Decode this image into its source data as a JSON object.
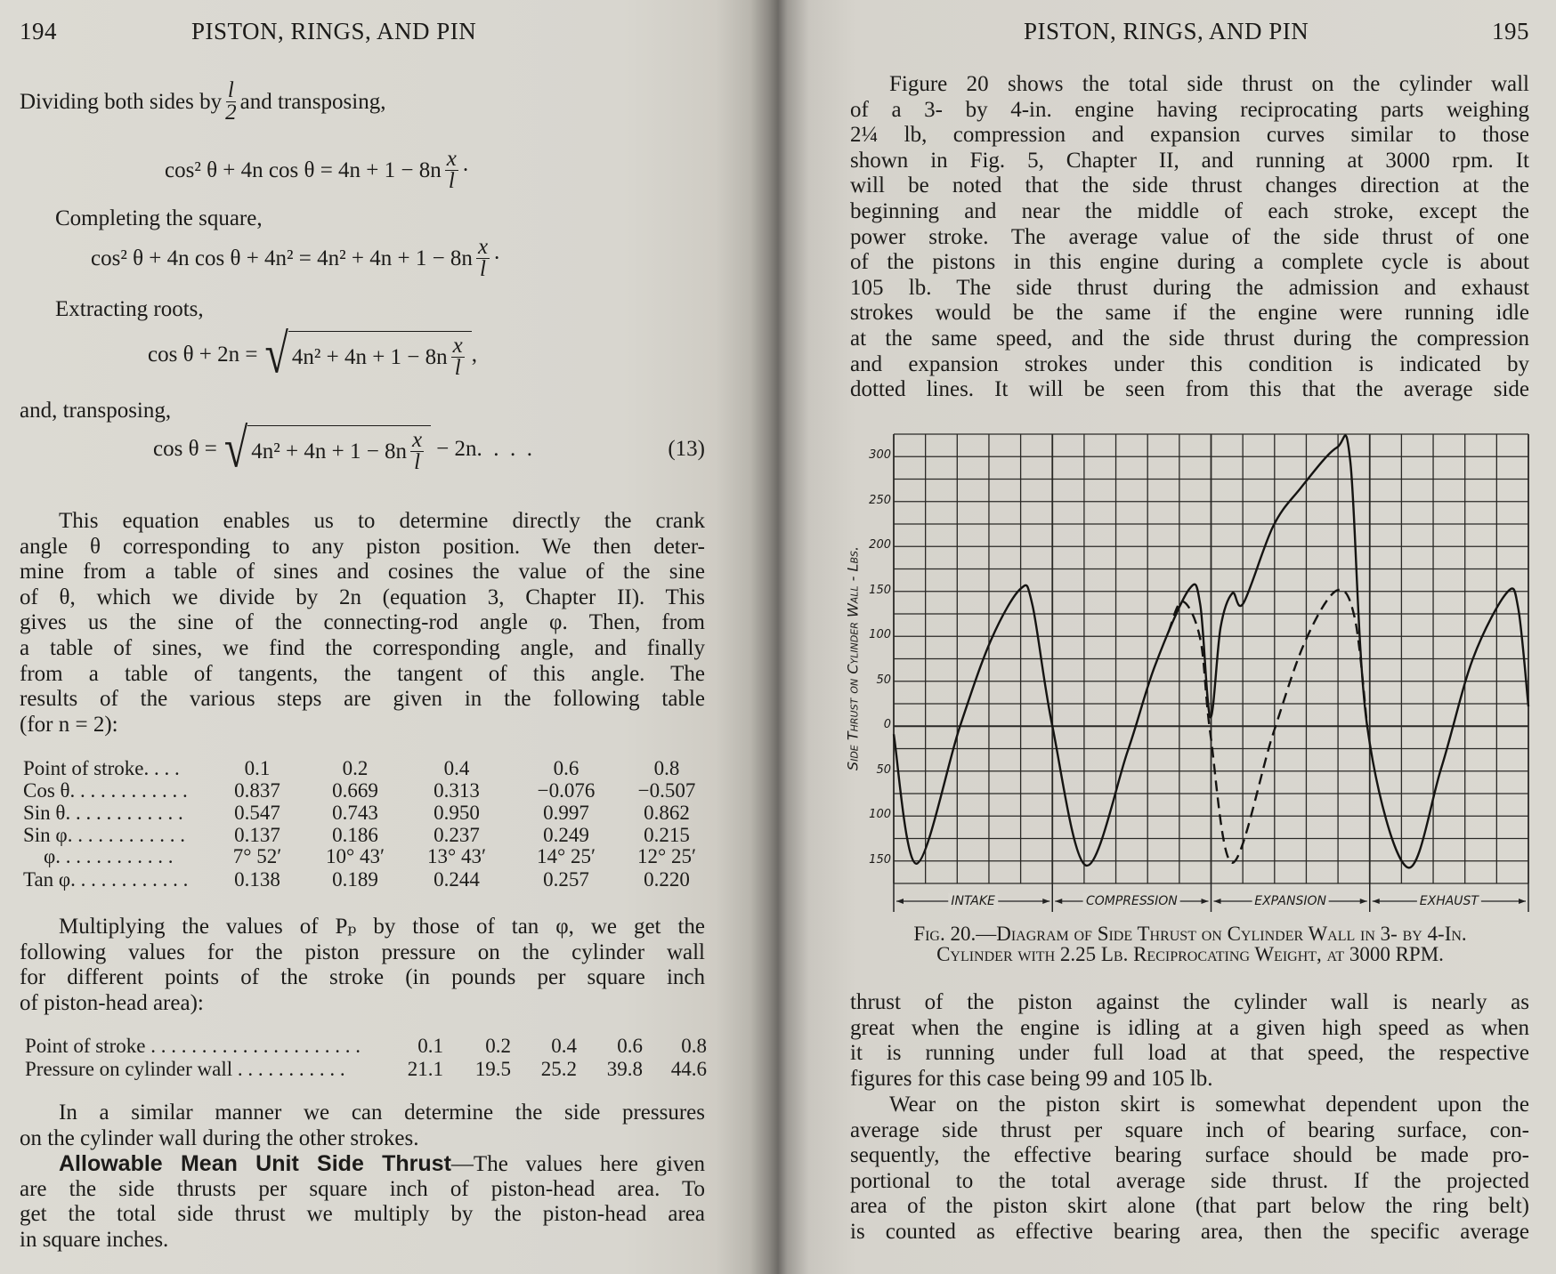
{
  "left_page": {
    "page_number": "194",
    "running_head": "PISTON, RINGS, AND PIN",
    "dividing": {
      "before": "Dividing both sides by",
      "num": "l",
      "den": "2",
      "after": "and transposing,"
    },
    "eq1": {
      "lhs": "cos² θ + 4n cos θ = 4n + 1 − 8n",
      "num": "x",
      "den": "l",
      "tail": "·"
    },
    "completing": "Completing the square,",
    "eq2": {
      "lhs": "cos² θ + 4n cos θ + 4n² = 4n² + 4n + 1 − 8n",
      "num": "x",
      "den": "l",
      "tail": "·"
    },
    "extracting": "Extracting roots,",
    "eq3": {
      "lhs": "cos θ + 2n =",
      "rad": "4n² + 4n + 1 − 8n",
      "num": "x",
      "den": "l",
      "tail": ","
    },
    "transposing": "and, transposing,",
    "eq4": {
      "lhs": "cos θ =",
      "rad": "4n² + 4n + 1 − 8n",
      "num": "x",
      "den": "l",
      "tail": "− 2n.  .  .  .",
      "number": "(13)"
    },
    "para1": {
      "lines": [
        "This equation enables us to determine directly the crank",
        "angle θ corresponding to any piston position.  We then deter-",
        "mine from a table of sines and cosines the value of the sine",
        "of θ, which we divide by 2n (equation 3, Chapter II).  This",
        "gives us the sine of the connecting-rod angle φ.  Then, from",
        "a table of sines, we find the corresponding angle, and finally",
        "from a table of tangents, the tangent of this angle.  The",
        "results of the various steps are given in the following table",
        "(for n = 2):"
      ]
    },
    "table1": {
      "rows": [
        {
          "label": "Point of stroke. . . .",
          "values": [
            "0.1",
            "0.2",
            "0.4",
            "0.6",
            "0.8"
          ]
        },
        {
          "label": "Cos θ. . . . . . . . . . . .",
          "values": [
            "0.837",
            "0.669",
            "0.313",
            "−0.076",
            "−0.507"
          ]
        },
        {
          "label": "Sin θ. . . . . . . . . . . .",
          "values": [
            "0.547",
            "0.743",
            "0.950",
            "0.997",
            "0.862"
          ]
        },
        {
          "label": "Sin φ. . . . . . . . . . . .",
          "values": [
            "0.137",
            "0.186",
            "0.237",
            "0.249",
            "0.215"
          ]
        },
        {
          "label": "    φ. . . . . . . . . . . .",
          "values": [
            "7° 52′",
            "10° 43′",
            "13° 43′",
            "14° 25′",
            "12° 25′"
          ]
        },
        {
          "label": "Tan φ. . . . . . . . . . . .",
          "values": [
            "0.138",
            "0.189",
            "0.244",
            "0.257",
            "0.220"
          ]
        }
      ]
    },
    "para2": {
      "lines": [
        "Multiplying the values of Pₚ by those of tan φ, we get the",
        "following values for the piston pressure on the cylinder wall",
        "for different points of the stroke (in pounds per square inch",
        "of piston-head area):"
      ]
    },
    "table2": {
      "rows": [
        {
          "label": "Point of stroke . . . . . . . . . . . . . . . . . . . . .",
          "values": [
            "0.1",
            "0.2",
            "0.4",
            "0.6",
            "0.8"
          ]
        },
        {
          "label": "Pressure on cylinder wall . . . . . . . . . . .",
          "values": [
            "21.1",
            "19.5",
            "25.2",
            "39.8",
            "44.6"
          ]
        }
      ]
    },
    "para3": {
      "lines": [
        "In a similar manner we can determine the side pressures",
        "on the cylinder wall during the other strokes."
      ]
    },
    "para4": {
      "heading": "Allowable Mean Unit Side Thrust",
      "lines": [
        "—The values here given",
        "are the side thrusts per square inch of piston-head area.  To",
        "get the total side thrust we multiply by the piston-head area",
        "in square inches."
      ]
    }
  },
  "right_page": {
    "page_number": "195",
    "running_head": "PISTON, RINGS, AND PIN",
    "para1": {
      "lines": [
        "Figure 20 shows the total side thrust on the cylinder wall",
        "of a 3- by 4-in. engine having reciprocating parts weighing",
        "2¼ lb, compression and expansion curves similar to those",
        "shown in Fig. 5, Chapter II, and running at 3000 rpm.  It",
        "will be noted that the side thrust changes direction at the",
        "beginning and near the middle of each stroke, except the",
        "power stroke.  The average value of the side thrust of one",
        "of the pistons in this engine during a complete cycle is about",
        "105 lb.  The side thrust during the admission and exhaust",
        "strokes would be the same if the engine were running idle",
        "at the same speed, and the side thrust during the compression",
        "and expansion strokes under this condition is indicated by",
        "dotted lines.  It will be seen from this that the average side"
      ]
    },
    "figure_caption": [
      "Fig. 20.—Diagram of Side Thrust on Cylinder Wall in 3- by 4-In.",
      "Cylinder with 2.25 Lb. Reciprocating Weight, at 3000 RPM."
    ],
    "para2": {
      "lines": [
        "thrust of the piston against the cylinder wall is nearly as",
        "great when the engine is idling at a given high speed as when",
        "it is running under full load at that speed, the respective",
        "figures for this case being 99 and 105 lb."
      ]
    },
    "para3": {
      "lines": [
        "Wear on the piston skirt is somewhat dependent upon the",
        "average side thrust per square inch of bearing surface, con-",
        "sequently, the effective bearing surface should be made pro-",
        "portional to the total average side thrust.  If the projected",
        "area of the piston skirt alone (that part below the ring belt)",
        "is counted as effective bearing area, then the specific average"
      ]
    }
  },
  "chart_data": {
    "type": "line",
    "title": "",
    "ylabel": "Side Thrust on Cylinder Wall - Lbs.",
    "xlabel": "",
    "ylim": [
      -175,
      325
    ],
    "xlim": [
      0,
      4
    ],
    "y_ticks": [
      300,
      250,
      200,
      150,
      100,
      50,
      0,
      -50,
      -100,
      -150
    ],
    "y_tick_labels": [
      "300",
      "250",
      "200",
      "150",
      "100",
      "50",
      "0",
      "50",
      "100",
      "150"
    ],
    "stroke_labels": [
      "Intake",
      "Compression",
      "Expansion",
      "Exhaust"
    ],
    "grid": true,
    "series": [
      {
        "style": "solid",
        "points": [
          [
            0,
            -9
          ],
          [
            0.144,
            -153
          ],
          [
            0.416,
            -1
          ],
          [
            0.616,
            97
          ],
          [
            0.8,
            153
          ],
          [
            0.874,
            135
          ],
          [
            1.0,
            0
          ],
          [
            1.212,
            -155
          ],
          [
            1.474,
            -28
          ],
          [
            1.646,
            67
          ],
          [
            1.86,
            152
          ],
          [
            1.932,
            135
          ],
          [
            1.995,
            10
          ],
          [
            2.06,
            110
          ],
          [
            2.134,
            148
          ],
          [
            2.204,
            137
          ],
          [
            2.39,
            222
          ],
          [
            2.56,
            264
          ],
          [
            2.792,
            310
          ],
          [
            2.878,
            294
          ],
          [
            2.984,
            0
          ],
          [
            3.236,
            -157
          ],
          [
            3.45,
            -47
          ],
          [
            3.65,
            75
          ],
          [
            3.866,
            149
          ],
          [
            3.936,
            131
          ],
          [
            4.0,
            22
          ]
        ]
      },
      {
        "style": "dashed",
        "points": [
          [
            1.732,
            105
          ],
          [
            1.82,
            139
          ],
          [
            1.932,
            97
          ],
          [
            1.996,
            -9
          ],
          [
            2.134,
            -152
          ],
          [
            2.39,
            -9
          ],
          [
            2.592,
            94
          ],
          [
            2.792,
            151
          ],
          [
            2.906,
            120
          ],
          [
            2.984,
            0
          ]
        ]
      }
    ]
  }
}
